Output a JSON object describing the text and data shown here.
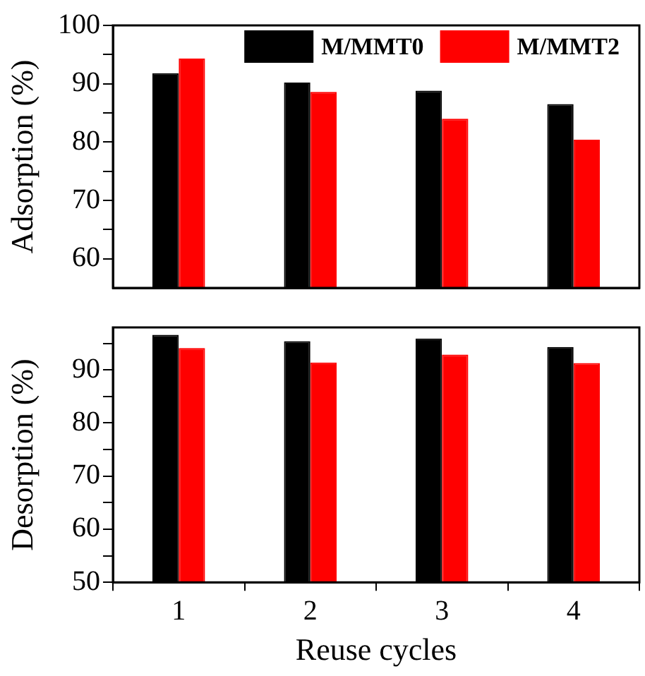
{
  "chart_data": [
    {
      "type": "bar",
      "ylabel": "Adsorption (%)",
      "categories": [
        "1",
        "2",
        "3",
        "4"
      ],
      "series": [
        {
          "name": "M/MMT0",
          "color": "#000000",
          "values": [
            91.8,
            90.2,
            88.8,
            86.5
          ]
        },
        {
          "name": "M/MMT2",
          "color": "#ff0000",
          "values": [
            94.3,
            88.6,
            84.0,
            80.4
          ]
        }
      ],
      "ylim": [
        55,
        100
      ],
      "yticks": [
        60,
        {
          "value": 65,
          "label": null
        },
        70,
        {
          "value": 75,
          "label": null
        },
        80,
        {
          "value": 85,
          "label": null
        },
        90,
        {
          "value": 95,
          "label": null
        },
        100
      ],
      "grid": false,
      "legend": "top right",
      "tick_labels": "y"
    },
    {
      "type": "bar",
      "xlabel": "Reuse cycles",
      "ylabel": "Desorption (%)",
      "categories": [
        "1",
        "2",
        "3",
        "4"
      ],
      "series": [
        {
          "color": "#000000",
          "values": [
            96.6,
            95.4,
            95.9,
            94.3
          ]
        },
        {
          "color": "#ff0000",
          "values": [
            94.1,
            91.4,
            92.9,
            91.3
          ]
        }
      ],
      "ylim": [
        50,
        98
      ],
      "yticks": [
        50,
        {
          "value": 55,
          "label": null
        },
        60,
        {
          "value": 65,
          "label": null
        },
        70,
        {
          "value": 75,
          "label": null
        },
        80,
        {
          "value": 85,
          "label": null
        },
        90,
        {
          "value": 95,
          "label": null
        }
      ],
      "grid": false
    }
  ]
}
